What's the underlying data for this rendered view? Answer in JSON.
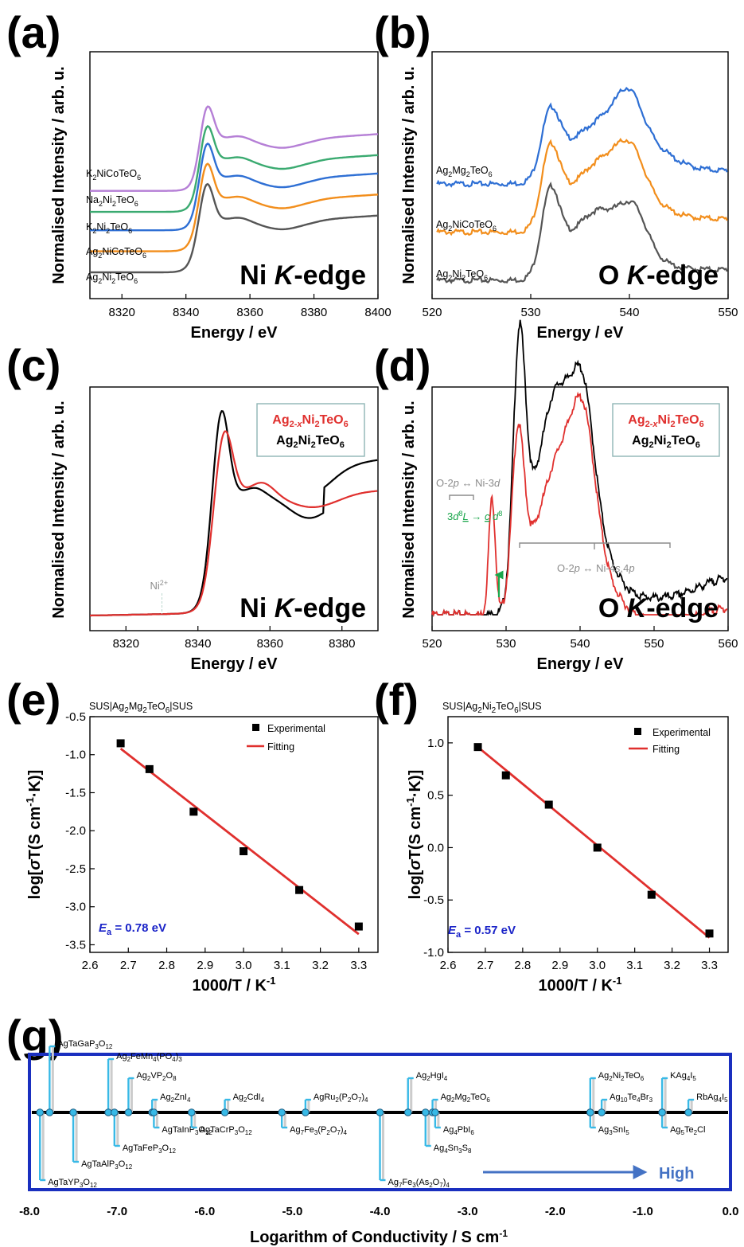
{
  "chart_data": [
    {
      "panel": "(a)",
      "type": "line",
      "xlabel": "Energy / eV",
      "ylabel": "Normalised Intensity / arb. u.",
      "xlim": [
        8310,
        8400
      ],
      "xticks": [
        8320,
        8340,
        8360,
        8380,
        8400
      ],
      "edge_label": "Ni K-edge",
      "series": [
        {
          "name": "Ag2Ni2TeO6",
          "label_main": "Ag",
          "label_sub1": "2",
          "label_mid": "Ni",
          "label_sub2": "2",
          "label_end": "TeO",
          "label_sub3": "6",
          "color": "#555555",
          "offset": 0.0
        },
        {
          "name": "Ag2NiCoTeO6",
          "label_main": "Ag",
          "label_sub1": "2",
          "label_mid": "NiCoTeO",
          "label_sub2": "6",
          "label_end": "",
          "label_sub3": "",
          "color": "#f28e1c",
          "offset": 0.4
        },
        {
          "name": "K2Ni2TeO6",
          "label_main": "K",
          "label_sub1": "2",
          "label_mid": "Ni",
          "label_sub2": "2",
          "label_end": "TeO",
          "label_sub3": "6",
          "color": "#2e6fd4",
          "offset": 0.8
        },
        {
          "name": "Na2Ni2TeO6",
          "label_main": "Na",
          "label_sub1": "2",
          "label_mid": "Ni",
          "label_sub2": "2",
          "label_end": "TeO",
          "label_sub3": "6",
          "color": "#3aaa70",
          "offset": 1.15
        },
        {
          "name": "K2NiCoTeO6",
          "label_main": "K",
          "label_sub1": "2",
          "label_mid": "NiCoTeO",
          "label_sub2": "6",
          "label_end": "",
          "label_sub3": "",
          "color": "#b57fd6",
          "offset": 1.55
        }
      ]
    },
    {
      "panel": "(b)",
      "type": "line",
      "xlabel": "Energy / eV",
      "ylabel": "Normalised Intensity / arb. u.",
      "xlim": [
        520,
        550
      ],
      "xticks": [
        520,
        530,
        540,
        550
      ],
      "edge_label": "O K-edge",
      "series": [
        {
          "name": "Ag2Ni2TeO6",
          "label_main": "Ag",
          "label_sub1": "2",
          "label_mid": "Ni",
          "label_sub2": "2",
          "label_end": "TeO",
          "label_sub3": "6",
          "color": "#555555",
          "offset": 0.0
        },
        {
          "name": "Ag2NiCoTeO6",
          "label_main": "Ag",
          "label_sub1": "2",
          "label_mid": "NiCoTeO",
          "label_sub2": "6",
          "label_end": "",
          "label_sub3": "",
          "color": "#f28e1c",
          "offset": 0.55
        },
        {
          "name": "Ag2Mg2TeO6",
          "label_main": "Ag",
          "label_sub1": "2",
          "label_mid": "Mg",
          "label_sub2": "2",
          "label_end": "TeO",
          "label_sub3": "6",
          "color": "#2e6fd4",
          "offset": 1.1
        }
      ]
    },
    {
      "panel": "(c)",
      "type": "line",
      "xlabel": "Energy / eV",
      "ylabel": "Normalised Intensity / arb. u.",
      "xlim": [
        8310,
        8390
      ],
      "xticks": [
        8320,
        8340,
        8360,
        8380
      ],
      "edge_label": "Ni K-edge",
      "annotation": "Ni2+",
      "annotation_x": 8330,
      "legend": [
        "Ag2-xNi2TeO6",
        "Ag2Ni2TeO6"
      ],
      "series": [
        {
          "name": "Ag2Ni2TeO6",
          "color": "#000000"
        },
        {
          "name": "Ag2-xNi2TeO6",
          "color": "#e0302e"
        }
      ]
    },
    {
      "panel": "(d)",
      "type": "line",
      "xlabel": "Energy / eV",
      "ylabel": "Normalised Intensity / arb. u.",
      "xlim": [
        520,
        560
      ],
      "xticks": [
        520,
        530,
        540,
        550,
        560
      ],
      "edge_label": "O K-edge",
      "annotations": [
        "O-2p ↔ Ni-3d",
        "3d8L → c d8",
        "O-2p ↔ Ni-4s,4p"
      ],
      "legend": [
        "Ag2-xNi2TeO6",
        "Ag2Ni2TeO6"
      ],
      "series": [
        {
          "name": "Ag2Ni2TeO6",
          "color": "#000000"
        },
        {
          "name": "Ag2-xNi2TeO6",
          "color": "#e0302e"
        }
      ]
    },
    {
      "panel": "(e)",
      "type": "scatter",
      "title": "SUS|Ag2Mg2TeO6|SUS",
      "xlabel": "1000/T / K-1",
      "ylabel": "log[σT(S cm-1·K)]",
      "xlim": [
        2.6,
        3.35
      ],
      "ylim": [
        -3.6,
        -0.5
      ],
      "xticks": [
        2.6,
        2.7,
        2.8,
        2.9,
        3.0,
        3.1,
        3.2,
        3.3
      ],
      "yticks": [
        -0.5,
        -1.0,
        -1.5,
        -2.0,
        -2.5,
        -3.0,
        -3.5
      ],
      "x": [
        2.68,
        2.755,
        2.87,
        3.0,
        3.145,
        3.3
      ],
      "y": [
        -0.85,
        -1.19,
        -1.75,
        -2.27,
        -2.78,
        -3.26
      ],
      "fit": {
        "x": [
          2.68,
          3.3
        ],
        "y": [
          -0.92,
          -3.36
        ]
      },
      "legend": [
        "Experimental",
        "Fitting"
      ],
      "ea": "= 0.78 eV"
    },
    {
      "panel": "(f)",
      "type": "scatter",
      "title": "SUS|Ag2Ni2TeO6|SUS",
      "xlabel": "1000/T / K-1",
      "ylabel": "log[σT(S cm-1·K)]",
      "xlim": [
        2.6,
        3.35
      ],
      "ylim": [
        -1.0,
        1.25
      ],
      "xticks": [
        2.6,
        2.7,
        2.8,
        2.9,
        3.0,
        3.1,
        3.2,
        3.3
      ],
      "yticks": [
        1.0,
        0.5,
        0.0,
        -0.5,
        -1.0
      ],
      "x": [
        2.68,
        2.755,
        2.87,
        3.0,
        3.145,
        3.3
      ],
      "y": [
        0.96,
        0.69,
        0.41,
        0.0,
        -0.45,
        -0.82
      ],
      "fit": {
        "x": [
          2.68,
          3.3
        ],
        "y": [
          0.96,
          -0.86
        ]
      },
      "legend": [
        "Experimental",
        "Fitting"
      ],
      "ea": "= 0.57 eV"
    },
    {
      "panel": "(g)",
      "type": "scatter",
      "xlabel": "Logarithm of Conductivity / S cm-1",
      "xlim": [
        -8.0,
        0.0
      ],
      "xticks": [
        -8.0,
        -7.0,
        -6.0,
        -5.0,
        -4.0,
        -3.0,
        -2.0,
        -1.0,
        0.0
      ],
      "arrow_label": "High",
      "materials": [
        {
          "name": "AgTaYP3O12",
          "x": -7.88,
          "side": "below",
          "level": 3,
          "highlight": false,
          "parts": [
            [
              "AgTaYP",
              ""
            ],
            [
              "3",
              "sub"
            ],
            [
              "O",
              ""
            ],
            [
              "12",
              "sub"
            ]
          ]
        },
        {
          "name": "AgTaGaP3O12",
          "x": -7.77,
          "side": "above",
          "level": 3,
          "highlight": false,
          "parts": [
            [
              "AgTaGaP",
              ""
            ],
            [
              "3",
              "sub"
            ],
            [
              "O",
              ""
            ],
            [
              "12",
              "sub"
            ]
          ]
        },
        {
          "name": "AgTaAlP3O12",
          "x": -7.5,
          "side": "below",
          "level": 2,
          "highlight": false,
          "parts": [
            [
              "AgTaAlP",
              ""
            ],
            [
              "3",
              "sub"
            ],
            [
              "O",
              ""
            ],
            [
              "12",
              "sub"
            ]
          ]
        },
        {
          "name": "Ag2FeMn4(PO4)3",
          "x": -7.1,
          "side": "above",
          "level": 2,
          "highlight": false,
          "parts": [
            [
              "Ag",
              ""
            ],
            [
              "2",
              "sub"
            ],
            [
              "FeMn",
              ""
            ],
            [
              "4",
              "sub"
            ],
            [
              "(PO",
              ""
            ],
            [
              "4",
              "sub"
            ],
            [
              ")",
              ""
            ],
            [
              "3",
              "sub"
            ]
          ]
        },
        {
          "name": "AgTaFeP3O12",
          "x": -7.03,
          "side": "below",
          "level": 1,
          "highlight": false,
          "parts": [
            [
              "AgTaFeP",
              ""
            ],
            [
              "3",
              "sub"
            ],
            [
              "O",
              ""
            ],
            [
              "12",
              "sub"
            ]
          ]
        },
        {
          "name": "Ag2VP2O8",
          "x": -6.87,
          "side": "above",
          "level": 1,
          "highlight": false,
          "parts": [
            [
              "Ag",
              ""
            ],
            [
              "2",
              "sub"
            ],
            [
              "VP",
              ""
            ],
            [
              "2",
              "sub"
            ],
            [
              "O",
              ""
            ],
            [
              "8",
              "sub"
            ]
          ]
        },
        {
          "name": "Ag2ZnI4",
          "x": -6.6,
          "side": "above",
          "level": 0,
          "highlight": false,
          "parts": [
            [
              "Ag",
              ""
            ],
            [
              "2",
              "sub"
            ],
            [
              "ZnI",
              ""
            ],
            [
              "4",
              "sub"
            ]
          ]
        },
        {
          "name": "AgTaInP3O12",
          "x": -6.58,
          "side": "below",
          "level": 0,
          "highlight": false,
          "parts": [
            [
              "AgTaInP",
              ""
            ],
            [
              "3",
              "sub"
            ],
            [
              "O",
              ""
            ],
            [
              "12",
              "sub"
            ]
          ]
        },
        {
          "name": "AgTaCrP3O12",
          "x": -6.15,
          "side": "below",
          "level": 0,
          "highlight": false,
          "parts": [
            [
              "AgTaCrP",
              ""
            ],
            [
              "3",
              "sub"
            ],
            [
              "O",
              ""
            ],
            [
              "12",
              "sub"
            ]
          ]
        },
        {
          "name": "Ag2CdI4",
          "x": -5.77,
          "side": "above",
          "level": 0,
          "highlight": false,
          "parts": [
            [
              "Ag",
              ""
            ],
            [
              "2",
              "sub"
            ],
            [
              "CdI",
              ""
            ],
            [
              "4",
              "sub"
            ]
          ]
        },
        {
          "name": "Ag7Fe3(P2O7)4",
          "x": -5.12,
          "side": "below",
          "level": 0,
          "highlight": false,
          "parts": [
            [
              "Ag",
              ""
            ],
            [
              "7",
              "sub"
            ],
            [
              "Fe",
              ""
            ],
            [
              "3",
              "sub"
            ],
            [
              "(P",
              ""
            ],
            [
              "2",
              "sub"
            ],
            [
              "O",
              ""
            ],
            [
              "7",
              "sub"
            ],
            [
              ")",
              ""
            ],
            [
              "4",
              "sub"
            ]
          ]
        },
        {
          "name": "AgRu2(P2O7)4",
          "x": -4.85,
          "side": "above",
          "level": 0,
          "highlight": false,
          "parts": [
            [
              "AgRu",
              ""
            ],
            [
              "2",
              "sub"
            ],
            [
              "(P",
              ""
            ],
            [
              "2",
              "sub"
            ],
            [
              "O",
              ""
            ],
            [
              "7",
              "sub"
            ],
            [
              ")",
              ""
            ],
            [
              "4",
              "sub"
            ]
          ]
        },
        {
          "name": "Ag7Fe3(As2O7)4",
          "x": -4.0,
          "side": "below",
          "level": 3,
          "highlight": false,
          "parts": [
            [
              "Ag",
              ""
            ],
            [
              "7",
              "sub"
            ],
            [
              "Fe",
              ""
            ],
            [
              "3",
              "sub"
            ],
            [
              "(As",
              ""
            ],
            [
              "2",
              "sub"
            ],
            [
              "O",
              ""
            ],
            [
              "7",
              "sub"
            ],
            [
              ")",
              ""
            ],
            [
              "4",
              "sub"
            ]
          ]
        },
        {
          "name": "Ag2HgI4",
          "x": -3.68,
          "side": "above",
          "level": 1,
          "highlight": false,
          "parts": [
            [
              "Ag",
              ""
            ],
            [
              "2",
              "sub"
            ],
            [
              "HgI",
              ""
            ],
            [
              "4",
              "sub"
            ]
          ]
        },
        {
          "name": "Ag4Sn3S8",
          "x": -3.48,
          "side": "below",
          "level": 1,
          "highlight": false,
          "parts": [
            [
              "Ag",
              ""
            ],
            [
              "4",
              "sub"
            ],
            [
              "Sn",
              ""
            ],
            [
              "3",
              "sub"
            ],
            [
              "S",
              ""
            ],
            [
              "8",
              "sub"
            ]
          ]
        },
        {
          "name": "Ag2Mg2TeO6",
          "x": -3.4,
          "side": "above",
          "level": 0,
          "highlight": true,
          "parts": [
            [
              "Ag",
              ""
            ],
            [
              "2",
              "sub"
            ],
            [
              "Mg",
              ""
            ],
            [
              "2",
              "sub"
            ],
            [
              "TeO",
              ""
            ],
            [
              "6",
              "sub"
            ]
          ]
        },
        {
          "name": "Ag4PbI6",
          "x": -3.37,
          "side": "below",
          "level": 0,
          "highlight": false,
          "parts": [
            [
              "Ag",
              ""
            ],
            [
              "4",
              "sub"
            ],
            [
              "PbI",
              ""
            ],
            [
              "6",
              "sub"
            ]
          ]
        },
        {
          "name": "Ag2Ni2TeO6",
          "x": -1.6,
          "side": "above",
          "level": 1,
          "highlight": true,
          "parts": [
            [
              "Ag",
              ""
            ],
            [
              "2",
              "sub"
            ],
            [
              "Ni",
              ""
            ],
            [
              "2",
              "sub"
            ],
            [
              "TeO",
              ""
            ],
            [
              "6",
              "sub"
            ]
          ]
        },
        {
          "name": "Ag3SnI5",
          "x": -1.6,
          "side": "below",
          "level": 0,
          "highlight": false,
          "parts": [
            [
              "Ag",
              ""
            ],
            [
              "3",
              "sub"
            ],
            [
              "SnI",
              ""
            ],
            [
              "5",
              "sub"
            ]
          ]
        },
        {
          "name": "Ag10Te4Br3",
          "x": -1.47,
          "side": "above",
          "level": 0,
          "highlight": false,
          "parts": [
            [
              "Ag",
              ""
            ],
            [
              "10",
              "sub"
            ],
            [
              "Te",
              ""
            ],
            [
              "4",
              "sub"
            ],
            [
              "Br",
              ""
            ],
            [
              "3",
              "sub"
            ]
          ]
        },
        {
          "name": "KAg4I5",
          "x": -0.78,
          "side": "above",
          "level": 1,
          "highlight": false,
          "parts": [
            [
              "KAg",
              ""
            ],
            [
              "4",
              "sub"
            ],
            [
              "I",
              ""
            ],
            [
              "5",
              "sub"
            ]
          ]
        },
        {
          "name": "Ag5Te2Cl",
          "x": -0.78,
          "side": "below",
          "level": 0,
          "highlight": false,
          "parts": [
            [
              "Ag",
              ""
            ],
            [
              "5",
              "sub"
            ],
            [
              "Te",
              ""
            ],
            [
              "2",
              "sub"
            ],
            [
              "Cl",
              ""
            ]
          ]
        },
        {
          "name": "RbAg4I5",
          "x": -0.48,
          "side": "above",
          "level": 0,
          "highlight": false,
          "parts": [
            [
              "RbAg",
              ""
            ],
            [
              "4",
              "sub"
            ],
            [
              "I",
              ""
            ],
            [
              "5",
              "sub"
            ]
          ]
        }
      ]
    }
  ],
  "colors": {
    "frame": "#1a2fbf",
    "point": "#38b9e6",
    "highlight": "#e0302e",
    "arrow": "#4472c4",
    "ea": "#1a23c8",
    "gray_text": "#8c8c8c",
    "green": "#1aa64b"
  }
}
